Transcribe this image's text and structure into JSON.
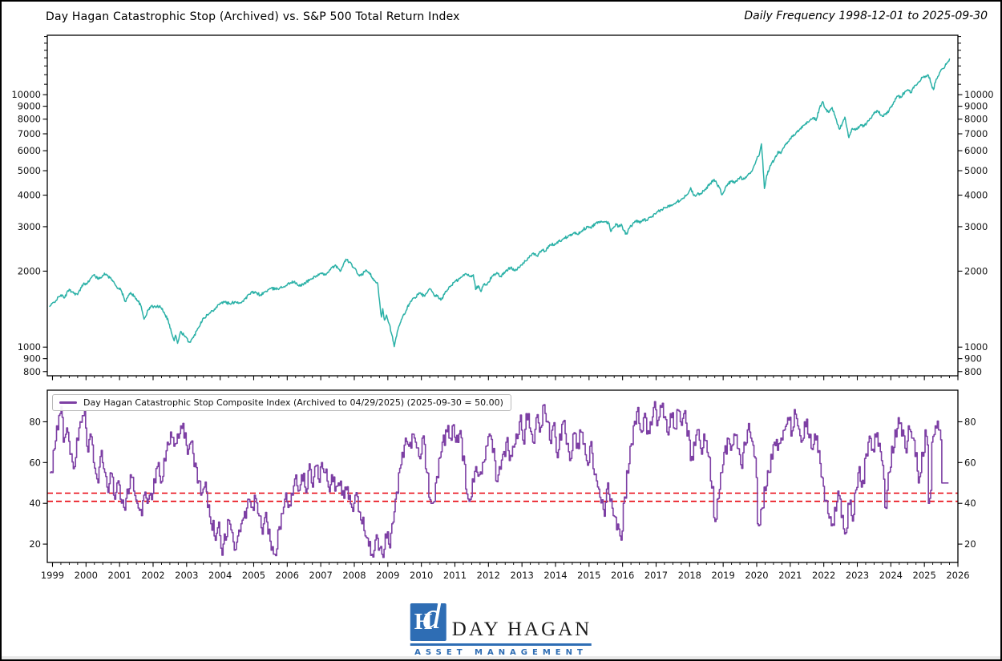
{
  "header": {
    "title": "Day Hagan Catastrophic Stop (Archived) vs. S&P 500 Total Return Index",
    "frequency_note": "Daily Frequency 1998-12-01 to 2025-09-30"
  },
  "legend": {
    "label": "Day Hagan Catastrophic Stop Composite Index (Archived to 04/29/2025) (2025-09-30 = 50.00)",
    "swatch_color": "#7d3fa4"
  },
  "logo": {
    "monogram_h": "H",
    "monogram_d": "d",
    "wordmark": "DAY HAGAN",
    "tagline": "ASSET MANAGEMENT",
    "brand_blue": "#2e6db4"
  },
  "colors": {
    "sp500_line": "#2bb1a7",
    "composite_line": "#7d3fa4",
    "threshold_red": "#e8000b",
    "spine": "#000000"
  },
  "chart_data": [
    {
      "type": "line",
      "title": "S&P 500 Total Return Index",
      "y_scale": "log",
      "grid": false,
      "x_range": [
        1998.845,
        2026.0
      ],
      "y_range": [
        770,
        17200
      ],
      "y_ticks": [
        800,
        900,
        1000,
        2000,
        3000,
        4000,
        5000,
        6000,
        7000,
        8000,
        9000,
        10000
      ],
      "y_minor_ticks": [
        11000,
        12000,
        13000,
        14000,
        15000,
        16000,
        17000
      ],
      "line_color": "#2bb1a7",
      "points": [
        [
          1998.92,
          1450
        ],
        [
          1999.1,
          1530
        ],
        [
          1999.25,
          1610
        ],
        [
          1999.35,
          1565
        ],
        [
          1999.5,
          1695
        ],
        [
          1999.6,
          1650
        ],
        [
          1999.75,
          1615
        ],
        [
          1999.92,
          1780
        ],
        [
          2000.05,
          1800
        ],
        [
          2000.17,
          1890
        ],
        [
          2000.25,
          1940
        ],
        [
          2000.35,
          1860
        ],
        [
          2000.5,
          1925
        ],
        [
          2000.6,
          1945
        ],
        [
          2000.75,
          1865
        ],
        [
          2000.9,
          1745
        ],
        [
          2001.05,
          1675
        ],
        [
          2001.17,
          1515
        ],
        [
          2001.33,
          1645
        ],
        [
          2001.5,
          1555
        ],
        [
          2001.63,
          1465
        ],
        [
          2001.73,
          1290
        ],
        [
          2001.85,
          1400
        ],
        [
          2001.95,
          1455
        ],
        [
          2002.1,
          1440
        ],
        [
          2002.2,
          1460
        ],
        [
          2002.33,
          1375
        ],
        [
          2002.45,
          1275
        ],
        [
          2002.58,
          1105
        ],
        [
          2002.63,
          1060
        ],
        [
          2002.67,
          1115
        ],
        [
          2002.73,
          1035
        ],
        [
          2002.83,
          1155
        ],
        [
          2002.95,
          1100
        ],
        [
          2003.08,
          1045
        ],
        [
          2003.2,
          1090
        ],
        [
          2003.33,
          1185
        ],
        [
          2003.5,
          1305
        ],
        [
          2003.67,
          1355
        ],
        [
          2003.83,
          1415
        ],
        [
          2004.0,
          1495
        ],
        [
          2004.15,
          1510
        ],
        [
          2004.3,
          1480
        ],
        [
          2004.45,
          1515
        ],
        [
          2004.6,
          1495
        ],
        [
          2004.75,
          1555
        ],
        [
          2004.92,
          1645
        ],
        [
          2005.08,
          1640
        ],
        [
          2005.2,
          1605
        ],
        [
          2005.35,
          1660
        ],
        [
          2005.5,
          1705
        ],
        [
          2005.65,
          1700
        ],
        [
          2005.8,
          1720
        ],
        [
          2005.95,
          1750
        ],
        [
          2006.1,
          1800
        ],
        [
          2006.2,
          1815
        ],
        [
          2006.35,
          1745
        ],
        [
          2006.5,
          1785
        ],
        [
          2006.67,
          1845
        ],
        [
          2006.83,
          1905
        ],
        [
          2007.0,
          1955
        ],
        [
          2007.1,
          1930
        ],
        [
          2007.25,
          2005
        ],
        [
          2007.42,
          2105
        ],
        [
          2007.52,
          2050
        ],
        [
          2007.6,
          2010
        ],
        [
          2007.75,
          2230
        ],
        [
          2007.85,
          2170
        ],
        [
          2008.0,
          2055
        ],
        [
          2008.1,
          1950
        ],
        [
          2008.2,
          1920
        ],
        [
          2008.33,
          2005
        ],
        [
          2008.45,
          1975
        ],
        [
          2008.58,
          1835
        ],
        [
          2008.7,
          1780
        ],
        [
          2008.77,
          1450
        ],
        [
          2008.81,
          1315
        ],
        [
          2008.85,
          1420
        ],
        [
          2008.9,
          1280
        ],
        [
          2008.96,
          1340
        ],
        [
          2009.05,
          1230
        ],
        [
          2009.12,
          1120
        ],
        [
          2009.19,
          1005
        ],
        [
          2009.3,
          1170
        ],
        [
          2009.42,
          1295
        ],
        [
          2009.55,
          1400
        ],
        [
          2009.67,
          1515
        ],
        [
          2009.8,
          1570
        ],
        [
          2009.95,
          1635
        ],
        [
          2010.1,
          1590
        ],
        [
          2010.25,
          1705
        ],
        [
          2010.38,
          1600
        ],
        [
          2010.5,
          1585
        ],
        [
          2010.58,
          1535
        ],
        [
          2010.7,
          1635
        ],
        [
          2010.85,
          1740
        ],
        [
          2011.0,
          1815
        ],
        [
          2011.15,
          1870
        ],
        [
          2011.33,
          1955
        ],
        [
          2011.45,
          1910
        ],
        [
          2011.55,
          1935
        ],
        [
          2011.62,
          1690
        ],
        [
          2011.7,
          1750
        ],
        [
          2011.78,
          1660
        ],
        [
          2011.85,
          1770
        ],
        [
          2011.95,
          1760
        ],
        [
          2012.1,
          1900
        ],
        [
          2012.25,
          1975
        ],
        [
          2012.35,
          1900
        ],
        [
          2012.5,
          1985
        ],
        [
          2012.67,
          2075
        ],
        [
          2012.78,
          2020
        ],
        [
          2012.92,
          2065
        ],
        [
          2013.1,
          2195
        ],
        [
          2013.25,
          2300
        ],
        [
          2013.38,
          2345
        ],
        [
          2013.45,
          2295
        ],
        [
          2013.6,
          2425
        ],
        [
          2013.7,
          2400
        ],
        [
          2013.85,
          2545
        ],
        [
          2014.0,
          2555
        ],
        [
          2014.1,
          2630
        ],
        [
          2014.25,
          2690
        ],
        [
          2014.4,
          2770
        ],
        [
          2014.55,
          2840
        ],
        [
          2014.65,
          2795
        ],
        [
          2014.8,
          2905
        ],
        [
          2014.95,
          2995
        ],
        [
          2015.05,
          2965
        ],
        [
          2015.2,
          3095
        ],
        [
          2015.35,
          3125
        ],
        [
          2015.5,
          3135
        ],
        [
          2015.6,
          3095
        ],
        [
          2015.65,
          2870
        ],
        [
          2015.72,
          2960
        ],
        [
          2015.8,
          3085
        ],
        [
          2015.88,
          3000
        ],
        [
          2015.96,
          3070
        ],
        [
          2016.05,
          2880
        ],
        [
          2016.12,
          2805
        ],
        [
          2016.22,
          2990
        ],
        [
          2016.35,
          3115
        ],
        [
          2016.47,
          3160
        ],
        [
          2016.52,
          3095
        ],
        [
          2016.6,
          3200
        ],
        [
          2016.72,
          3185
        ],
        [
          2016.85,
          3265
        ],
        [
          2017.0,
          3380
        ],
        [
          2017.15,
          3500
        ],
        [
          2017.3,
          3575
        ],
        [
          2017.45,
          3655
        ],
        [
          2017.6,
          3755
        ],
        [
          2017.75,
          3855
        ],
        [
          2017.9,
          3985
        ],
        [
          2018.03,
          4280
        ],
        [
          2018.1,
          4055
        ],
        [
          2018.16,
          3975
        ],
        [
          2018.25,
          4085
        ],
        [
          2018.32,
          4030
        ],
        [
          2018.45,
          4205
        ],
        [
          2018.6,
          4415
        ],
        [
          2018.73,
          4620
        ],
        [
          2018.8,
          4480
        ],
        [
          2018.88,
          4300
        ],
        [
          2018.96,
          4010
        ],
        [
          2019.1,
          4370
        ],
        [
          2019.25,
          4545
        ],
        [
          2019.35,
          4480
        ],
        [
          2019.5,
          4710
        ],
        [
          2019.58,
          4635
        ],
        [
          2019.72,
          4785
        ],
        [
          2019.85,
          4960
        ],
        [
          2020.0,
          5550
        ],
        [
          2020.08,
          5800
        ],
        [
          2020.14,
          6390
        ],
        [
          2020.18,
          5500
        ],
        [
          2020.23,
          4250
        ],
        [
          2020.3,
          4800
        ],
        [
          2020.42,
          5250
        ],
        [
          2020.55,
          5650
        ],
        [
          2020.65,
          5950
        ],
        [
          2020.72,
          5850
        ],
        [
          2020.85,
          6350
        ],
        [
          2021.0,
          6700
        ],
        [
          2021.15,
          6950
        ],
        [
          2021.3,
          7350
        ],
        [
          2021.45,
          7650
        ],
        [
          2021.6,
          7950
        ],
        [
          2021.7,
          8100
        ],
        [
          2021.77,
          7900
        ],
        [
          2021.88,
          8900
        ],
        [
          2021.97,
          9400
        ],
        [
          2022.05,
          8800
        ],
        [
          2022.15,
          8500
        ],
        [
          2022.25,
          8900
        ],
        [
          2022.35,
          8100
        ],
        [
          2022.47,
          7300
        ],
        [
          2022.55,
          7700
        ],
        [
          2022.63,
          8150
        ],
        [
          2022.75,
          6760
        ],
        [
          2022.85,
          7350
        ],
        [
          2022.95,
          7250
        ],
        [
          2023.1,
          7600
        ],
        [
          2023.2,
          7500
        ],
        [
          2023.35,
          7900
        ],
        [
          2023.5,
          8500
        ],
        [
          2023.6,
          8650
        ],
        [
          2023.75,
          8200
        ],
        [
          2023.85,
          8350
        ],
        [
          2024.0,
          8900
        ],
        [
          2024.1,
          9400
        ],
        [
          2024.22,
          9900
        ],
        [
          2024.3,
          9750
        ],
        [
          2024.42,
          10300
        ],
        [
          2024.52,
          10450
        ],
        [
          2024.6,
          10200
        ],
        [
          2024.72,
          10900
        ],
        [
          2024.85,
          11300
        ],
        [
          2024.95,
          11700
        ],
        [
          2025.05,
          11850
        ],
        [
          2025.12,
          11950
        ],
        [
          2025.2,
          11100
        ],
        [
          2025.27,
          10470
        ],
        [
          2025.35,
          11500
        ],
        [
          2025.45,
          12200
        ],
        [
          2025.55,
          12700
        ],
        [
          2025.65,
          13200
        ],
        [
          2025.75,
          13840
        ]
      ]
    },
    {
      "type": "step-line",
      "title": "Day Hagan Catastrophic Stop Composite Index (Archived to 04/29/2025) (2025-09-30 = 50.00)",
      "grid": false,
      "x_range": [
        1998.845,
        2026.0
      ],
      "y_range": [
        11,
        95.5
      ],
      "y_ticks": [
        20,
        40,
        60,
        80
      ],
      "x_tick_years": [
        1999,
        2000,
        2001,
        2002,
        2003,
        2004,
        2005,
        2006,
        2007,
        2008,
        2009,
        2010,
        2011,
        2012,
        2013,
        2014,
        2015,
        2016,
        2017,
        2018,
        2019,
        2020,
        2021,
        2022,
        2023,
        2024,
        2025,
        2026
      ],
      "thresholds": [
        {
          "value": 45,
          "color": "#e8000b",
          "style": "dashed"
        },
        {
          "value": 41,
          "color": "#e8000b",
          "style": "dashed"
        }
      ],
      "line_color": "#7d3fa4",
      "final_value": 50.0,
      "start_year": 1998.92,
      "step_years": 0.1,
      "values": [
        55,
        66,
        78,
        84,
        70,
        77,
        64,
        57,
        72,
        80,
        83,
        68,
        74,
        60,
        52,
        63,
        57,
        48,
        55,
        44,
        50,
        42,
        38,
        47,
        54,
        46,
        40,
        37,
        44,
        40,
        45,
        52,
        58,
        50,
        62,
        70,
        75,
        68,
        74,
        78,
        72,
        64,
        70,
        58,
        50,
        44,
        48,
        38,
        30,
        24,
        28,
        18,
        25,
        32,
        27,
        17,
        24,
        30,
        36,
        42,
        38,
        44,
        35,
        28,
        33,
        25,
        17,
        15,
        27,
        35,
        42,
        38,
        45,
        52,
        46,
        54,
        48,
        56,
        50,
        58,
        52,
        60,
        55,
        48,
        54,
        46,
        50,
        44,
        48,
        42,
        38,
        44,
        36,
        30,
        24,
        19,
        15,
        22,
        17,
        15,
        25,
        20,
        30,
        42,
        55,
        65,
        72,
        68,
        74,
        70,
        63,
        72,
        57,
        43,
        40,
        50,
        62,
        70,
        76,
        72,
        78,
        70,
        74,
        61,
        47,
        41,
        52,
        58,
        54,
        60,
        68,
        74,
        65,
        51,
        58,
        64,
        70,
        61,
        68,
        74,
        80,
        71,
        84,
        77,
        70,
        82,
        75,
        88,
        80,
        71,
        78,
        65,
        74,
        80,
        69,
        61,
        74,
        67,
        76,
        69,
        61,
        68,
        57,
        51,
        43,
        37,
        47,
        41,
        34,
        27,
        24,
        40,
        56,
        68,
        78,
        85,
        76,
        82,
        74,
        80,
        87,
        78,
        88,
        82,
        75,
        84,
        77,
        86,
        80,
        84,
        73,
        61,
        70,
        76,
        67,
        74,
        65,
        51,
        33,
        42,
        55,
        65,
        72,
        66,
        74,
        67,
        59,
        70,
        76,
        72,
        63,
        30,
        37,
        48,
        56,
        64,
        70,
        66,
        72,
        76,
        82,
        73,
        86,
        78,
        70,
        80,
        74,
        67,
        74,
        65,
        53,
        41,
        35,
        29,
        38,
        46,
        33,
        25,
        40,
        34,
        45,
        55,
        48,
        62,
        70,
        66,
        74,
        68,
        61,
        38,
        55,
        68,
        76,
        82,
        73,
        67,
        78,
        72,
        63,
        50,
        65,
        76,
        40,
        70,
        78,
        76,
        50,
        50,
        50
      ]
    }
  ]
}
